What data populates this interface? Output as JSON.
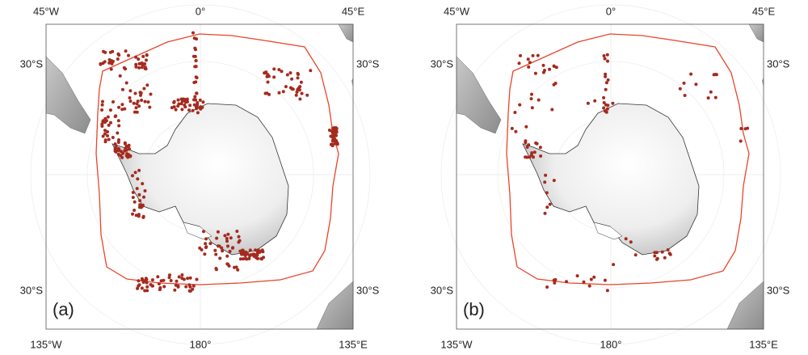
{
  "panels": [
    {
      "label": "(a)",
      "top_labels": [
        "45°W",
        "0°",
        "45°E"
      ],
      "bottom_labels": [
        "135°W",
        "180°",
        "135°E"
      ],
      "left_labels": [
        "30°S",
        "30°S"
      ],
      "right_labels": [
        "30°S",
        "30°S"
      ]
    },
    {
      "label": "(b)",
      "top_labels": [
        "45°W",
        "0°",
        "45°E"
      ],
      "bottom_labels": [
        "135°W",
        "180°",
        "135°E"
      ],
      "left_labels": [
        "30°S",
        "30°S"
      ],
      "right_labels": [
        "30°S",
        "30°S"
      ]
    }
  ]
}
